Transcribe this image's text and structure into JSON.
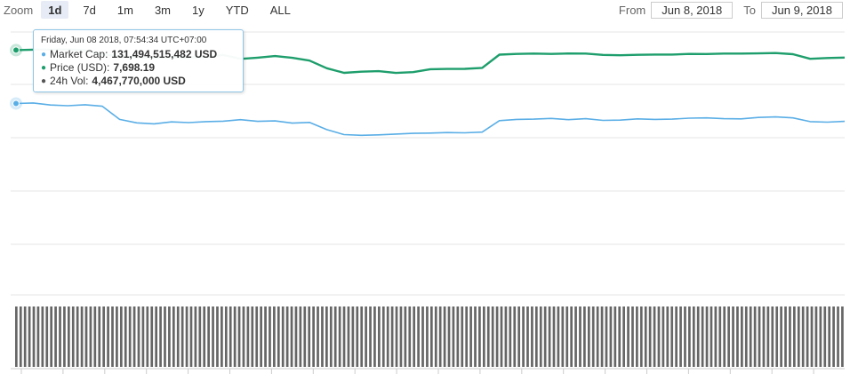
{
  "zoom": {
    "label": "Zoom",
    "buttons": [
      "1d",
      "7d",
      "1m",
      "3m",
      "1y",
      "YTD",
      "ALL"
    ],
    "selected": "1d"
  },
  "range": {
    "from_label": "From",
    "from_value": "Jun 8, 2018",
    "to_label": "To",
    "to_value": "Jun 9, 2018"
  },
  "tooltip": {
    "header": "Friday, Jun 08 2018, 07:54:34 UTC+07:00",
    "market_cap_label": "Market Cap:",
    "market_cap_value": "131,494,515,482 USD",
    "price_label": "Price (USD):",
    "price_value": "7,698.19",
    "volume_label": "24h Vol:",
    "volume_value": "4,467,770,000 USD"
  },
  "colors": {
    "market_cap": "#5aaee6",
    "price": "#1e9e6c",
    "volume": "#666666",
    "grid": "#e6e6e6",
    "tooltip_border": "#8fc6e6"
  },
  "chart_data": {
    "type": "line",
    "x": [
      0.0,
      0.5,
      1.0,
      1.5,
      2.0,
      2.5,
      3.0,
      3.5,
      4.0,
      4.5,
      5.0,
      5.5,
      6.0,
      6.5,
      7.0,
      7.5,
      8.0,
      8.5,
      9.0,
      9.5,
      10.0,
      10.5,
      11.0,
      11.5,
      12.0,
      12.5,
      13.0,
      13.5,
      14.0,
      14.5,
      15.0,
      15.5,
      16.0,
      16.5,
      17.0,
      17.5,
      18.0,
      18.5,
      19.0,
      19.5,
      20.0,
      20.5,
      21.0,
      21.5,
      22.0,
      22.5,
      23.0,
      23.5,
      24.0
    ],
    "series": [
      {
        "name": "Market Cap",
        "values": [
          78.4,
          78.6,
          77.8,
          77.5,
          77.9,
          77.3,
          72.0,
          70.6,
          70.2,
          71.0,
          70.7,
          71.1,
          71.3,
          71.9,
          71.2,
          71.4,
          70.5,
          70.8,
          67.9,
          65.9,
          65.6,
          65.8,
          66.1,
          66.4,
          66.5,
          66.7,
          66.6,
          66.9,
          71.5,
          72.0,
          72.1,
          72.4,
          71.9,
          72.3,
          71.6,
          71.7,
          72.2,
          72.0,
          72.1,
          72.5,
          72.6,
          72.3,
          72.2,
          72.8,
          73.0,
          72.6,
          71.1,
          70.9,
          71.2
        ]
      },
      {
        "name": "Price (USD)",
        "values": [
          7697.6,
          7698.5,
          7698.8,
          7699.2,
          7697.3,
          7688.6,
          7684.2,
          7681.8,
          7680.9,
          7681.7,
          7682.0,
          7682.6,
          7687.2,
          7678.5,
          7681.1,
          7684.6,
          7680.7,
          7674.7,
          7658.2,
          7648.1,
          7650.7,
          7651.8,
          7647.9,
          7649.7,
          7656.1,
          7656.6,
          7656.8,
          7659.0,
          7687.7,
          7689.3,
          7690.0,
          7689.2,
          7690.3,
          7690.0,
          7687.2,
          7686.4,
          7687.4,
          7688.0,
          7688.0,
          7689.3,
          7689.0,
          7690.1,
          7690.1,
          7690.5,
          7691.3,
          7688.8,
          7678.6,
          7680.3,
          7681.3
        ]
      }
    ],
    "volume_bars": 190
  }
}
